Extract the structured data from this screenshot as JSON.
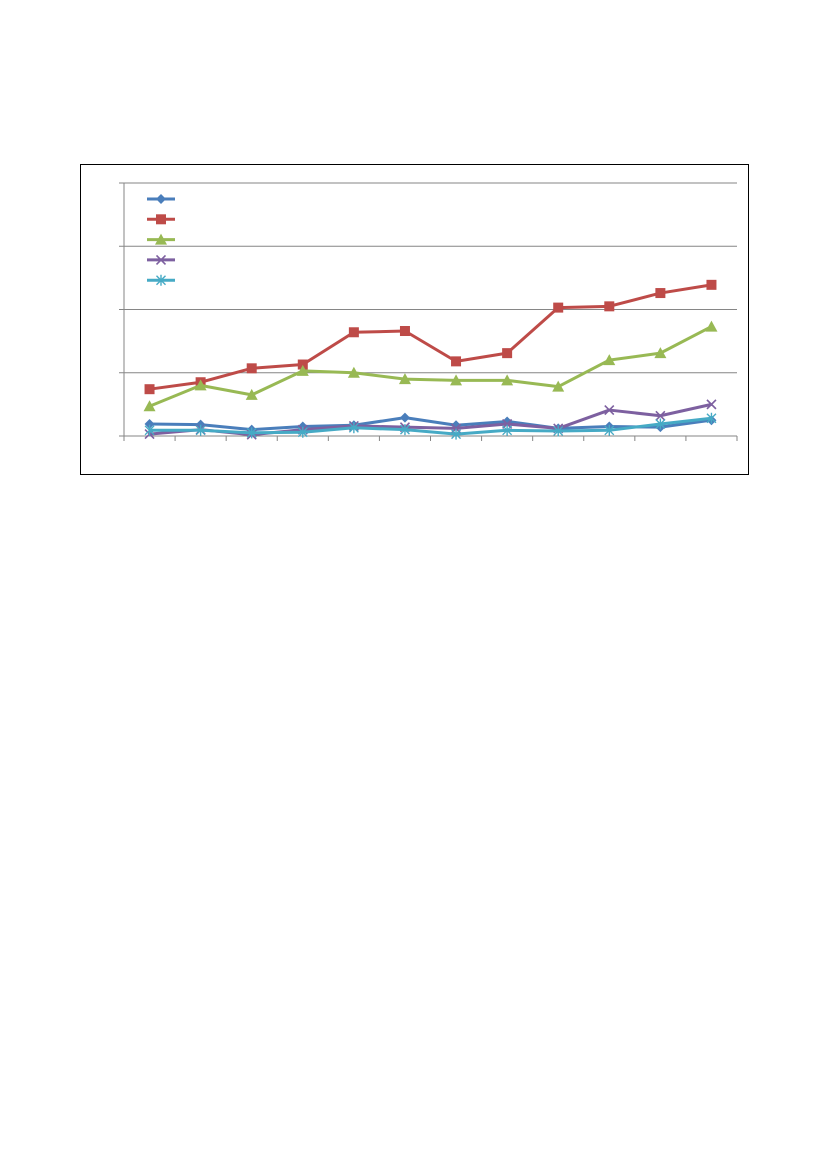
{
  "chart_data": {
    "type": "line",
    "title": "",
    "xlabel": "",
    "ylabel": "",
    "x": [
      1,
      2,
      3,
      4,
      5,
      6,
      7,
      8,
      9,
      10,
      11,
      12
    ],
    "ylim": [
      0,
      4
    ],
    "yticks": [
      0,
      1,
      2,
      3,
      4
    ],
    "grid": "horizontal",
    "legend": {
      "position": "top-left",
      "entries": [
        "",
        "",
        "",
        "",
        ""
      ]
    },
    "series": [
      {
        "color": "#4A7EBB",
        "marker": "diamond",
        "values": [
          0.19,
          0.18,
          0.1,
          0.15,
          0.17,
          0.29,
          0.17,
          0.23,
          0.12,
          0.15,
          0.14,
          0.25
        ]
      },
      {
        "color": "#BE4B48",
        "marker": "square",
        "values": [
          0.74,
          0.85,
          1.07,
          1.13,
          1.64,
          1.66,
          1.18,
          1.31,
          2.03,
          2.05,
          2.26,
          2.39
        ]
      },
      {
        "color": "#98B954",
        "marker": "triangle",
        "values": [
          0.47,
          0.8,
          0.65,
          1.03,
          1.0,
          0.9,
          0.88,
          0.88,
          0.78,
          1.2,
          1.31,
          1.73
        ]
      },
      {
        "color": "#7D60A0",
        "marker": "x",
        "values": [
          0.03,
          0.1,
          0.02,
          0.1,
          0.16,
          0.14,
          0.12,
          0.19,
          0.12,
          0.41,
          0.32,
          0.5
        ]
      },
      {
        "color": "#46AAC5",
        "marker": "asterisk",
        "values": [
          0.09,
          0.09,
          0.05,
          0.06,
          0.13,
          0.1,
          0.03,
          0.09,
          0.08,
          0.09,
          0.19,
          0.28
        ]
      }
    ]
  }
}
